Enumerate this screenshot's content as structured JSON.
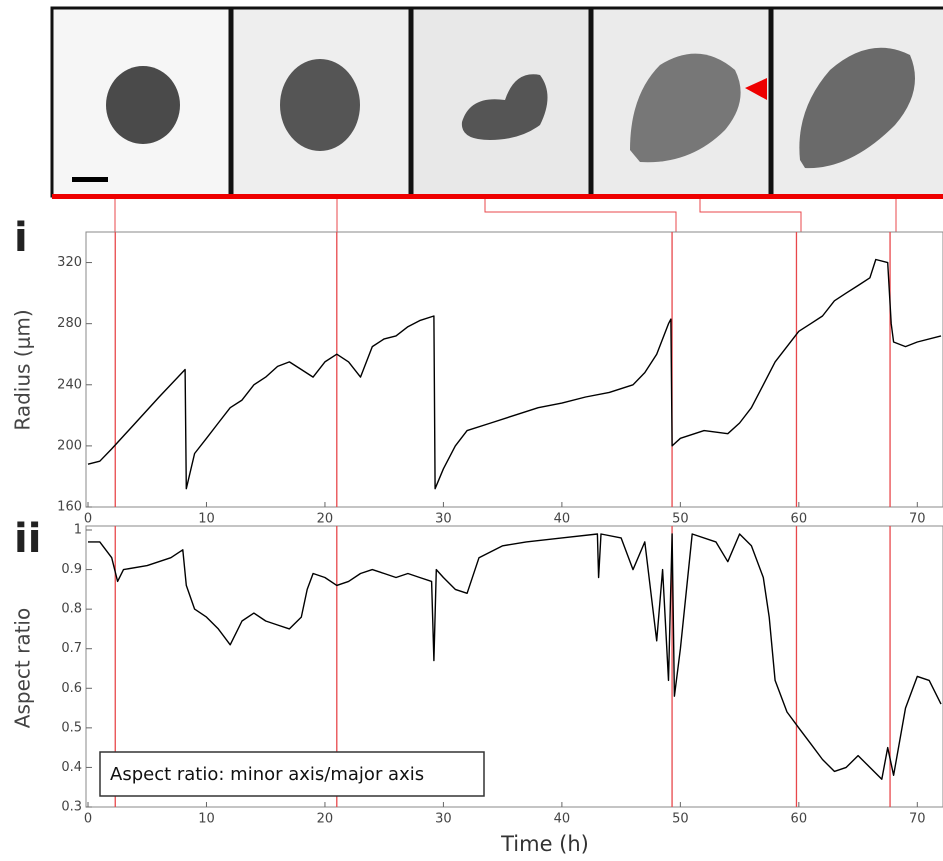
{
  "chart_data": [
    {
      "type": "line",
      "panel_label": "i",
      "ylabel": "Radius (μm)",
      "x": [
        0,
        1,
        2,
        4,
        6,
        8.2,
        8.3,
        9,
        10,
        11,
        12,
        13,
        14,
        15,
        16,
        17,
        18,
        19,
        20,
        21,
        22,
        23,
        24,
        25,
        26,
        27,
        28,
        29.2,
        29.3,
        30,
        31,
        32,
        34,
        36,
        38,
        40,
        42,
        44,
        46,
        47,
        48,
        49,
        49.2,
        49.3,
        50,
        52,
        54,
        55,
        56,
        57,
        58,
        59,
        60,
        61,
        62,
        63,
        64,
        65,
        66,
        66.5,
        67.5,
        67.8,
        68,
        69,
        70,
        72
      ],
      "values": [
        188,
        190,
        198,
        215,
        232,
        250,
        172,
        195,
        205,
        215,
        225,
        230,
        240,
        245,
        252,
        255,
        250,
        245,
        255,
        260,
        255,
        245,
        265,
        270,
        272,
        278,
        282,
        285,
        172,
        185,
        200,
        210,
        215,
        220,
        225,
        228,
        232,
        235,
        240,
        248,
        260,
        280,
        283,
        200,
        205,
        210,
        208,
        215,
        225,
        240,
        255,
        265,
        275,
        280,
        285,
        295,
        300,
        305,
        310,
        322,
        320,
        280,
        268,
        265,
        268,
        272
      ],
      "color": "#000000",
      "xlim": [
        0,
        72
      ],
      "xticks": [
        0,
        10,
        20,
        30,
        40,
        50,
        60,
        70
      ],
      "ylim": [
        160,
        340
      ],
      "yticks": [
        160,
        200,
        240,
        280,
        320
      ],
      "vlines": [
        2.3,
        21,
        49.3,
        59.8,
        67.7
      ],
      "vline_color": "#e8474b"
    },
    {
      "type": "line",
      "panel_label": "ii",
      "ylabel": "Aspect ratio",
      "xlabel": "Time (h)",
      "annotation": "Aspect ratio: minor axis/major axis",
      "x": [
        0,
        1,
        2,
        2.5,
        3,
        5,
        7,
        8,
        8.3,
        9,
        10,
        11,
        12,
        12.5,
        13,
        14,
        15,
        16,
        17,
        18,
        18.5,
        19,
        20,
        21,
        22,
        23,
        24,
        25,
        26,
        27,
        28,
        29,
        29.2,
        29.4,
        30,
        31,
        32,
        33,
        35,
        37,
        40,
        43,
        43.1,
        43.3,
        45,
        46,
        47,
        48,
        48.5,
        49,
        49.3,
        49.5,
        50,
        51,
        53,
        54,
        55,
        56,
        57,
        57.5,
        58,
        59,
        60,
        61,
        62,
        63,
        64,
        65,
        66,
        67,
        67.5,
        68,
        69,
        70,
        71,
        72
      ],
      "values": [
        0.97,
        0.97,
        0.93,
        0.87,
        0.9,
        0.91,
        0.93,
        0.95,
        0.86,
        0.8,
        0.78,
        0.75,
        0.71,
        0.74,
        0.77,
        0.79,
        0.77,
        0.76,
        0.75,
        0.78,
        0.85,
        0.89,
        0.88,
        0.86,
        0.87,
        0.89,
        0.9,
        0.89,
        0.88,
        0.89,
        0.88,
        0.87,
        0.67,
        0.9,
        0.88,
        0.85,
        0.84,
        0.93,
        0.96,
        0.97,
        0.98,
        0.99,
        0.88,
        0.99,
        0.98,
        0.9,
        0.97,
        0.72,
        0.9,
        0.62,
        0.99,
        0.58,
        0.7,
        0.99,
        0.97,
        0.92,
        0.99,
        0.96,
        0.88,
        0.78,
        0.62,
        0.54,
        0.5,
        0.46,
        0.42,
        0.39,
        0.4,
        0.43,
        0.4,
        0.37,
        0.45,
        0.38,
        0.55,
        0.63,
        0.62,
        0.56
      ],
      "color": "#000000",
      "xlim": [
        0,
        72
      ],
      "xticks": [
        0,
        10,
        20,
        30,
        40,
        50,
        60,
        70
      ],
      "ylim": [
        0.3,
        1
      ],
      "yticks": [
        0.3,
        0.4,
        0.5,
        0.6,
        0.7,
        0.8,
        0.9,
        1
      ],
      "vlines": [
        2.3,
        21,
        49.3,
        59.8,
        67.7
      ],
      "vline_color": "#e8474b"
    }
  ]
}
